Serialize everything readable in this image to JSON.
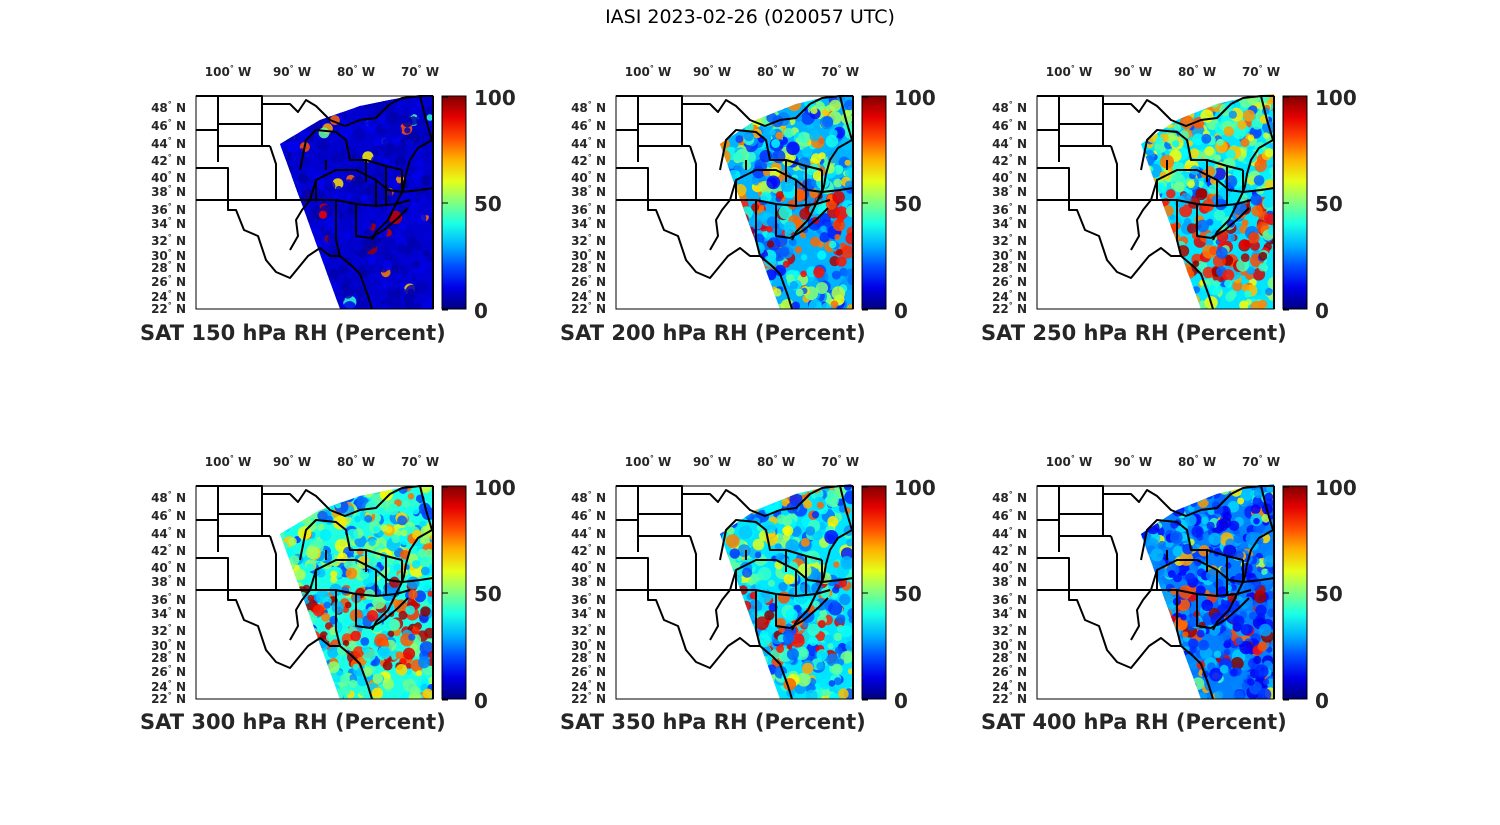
{
  "figure": {
    "title": "IASI 2023-02-26 (020057 UTC)"
  },
  "axes": {
    "lon_ticks": [
      "100",
      "90",
      "80",
      "70"
    ],
    "lon_suffix": "W",
    "lat_ticks": [
      "48",
      "46",
      "44",
      "42",
      "40",
      "38",
      "36",
      "34",
      "32",
      "30",
      "28",
      "26",
      "24",
      "22"
    ],
    "lat_suffix": "N",
    "colorbar_ticks": [
      "100",
      "50",
      "0"
    ]
  },
  "colors": {
    "colormap": "jet",
    "low": "#00008f",
    "mid": "#80ff80",
    "high": "#800000",
    "map_lines": "#000000"
  },
  "panels": [
    {
      "title": "SAT 150 hPa RH (Percent)",
      "level_hpa": 150,
      "moist_fraction": 0.05,
      "dominant_rh": 8
    },
    {
      "title": "SAT 200 hPa RH (Percent)",
      "level_hpa": 200,
      "moist_fraction": 0.45,
      "dominant_rh": 30
    },
    {
      "title": "SAT 250 hPa RH (Percent)",
      "level_hpa": 250,
      "moist_fraction": 0.55,
      "dominant_rh": 35
    },
    {
      "title": "SAT 300 hPa RH (Percent)",
      "level_hpa": 300,
      "moist_fraction": 0.4,
      "dominant_rh": 40
    },
    {
      "title": "SAT 350 hPa RH (Percent)",
      "level_hpa": 350,
      "moist_fraction": 0.3,
      "dominant_rh": 35
    },
    {
      "title": "SAT 400 hPa RH (Percent)",
      "level_hpa": 400,
      "moist_fraction": 0.2,
      "dominant_rh": 25
    }
  ]
}
